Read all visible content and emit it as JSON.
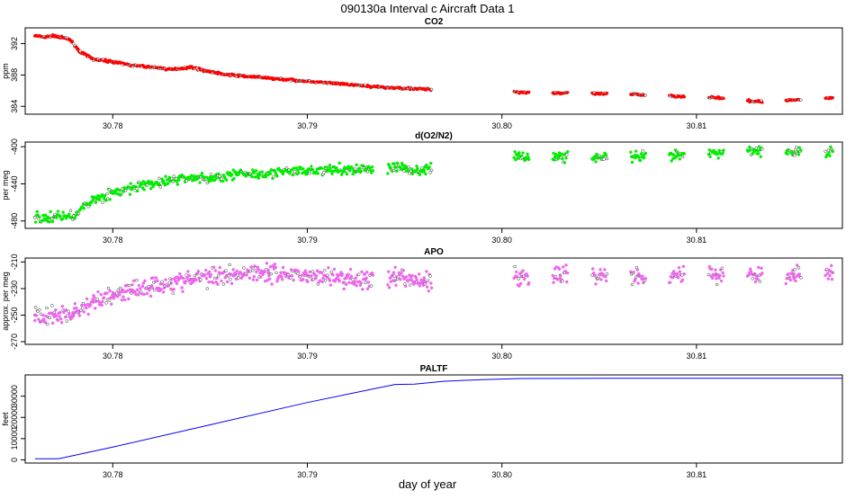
{
  "figure": {
    "title": "090130a   Interval c Aircraft Data 1",
    "xlabel": "day of year"
  },
  "chart_data": [
    {
      "type": "scatter",
      "title": "CO2",
      "ylabel": "ppm",
      "xlim": [
        30.7755,
        30.8175
      ],
      "ylim": [
        383.0,
        394.0
      ],
      "xticks": [
        30.78,
        30.79,
        30.8,
        30.81
      ],
      "xtick_labels": [
        "30.78",
        "30.79",
        "30.80",
        "30.81"
      ],
      "yticks": [
        384,
        388,
        392
      ],
      "ytick_labels": [
        "384",
        "388",
        "392"
      ],
      "color": "#ff0000",
      "series": [
        {
          "x": [
            30.776,
            30.7765,
            30.777,
            30.7775,
            30.7778,
            30.7783,
            30.779,
            30.78,
            30.781,
            30.782,
            30.783,
            30.784,
            30.785,
            30.786,
            30.787,
            30.788,
            30.789,
            30.79,
            30.791,
            30.792,
            30.793,
            30.794,
            30.795,
            30.796,
            30.801,
            30.803,
            30.805,
            30.807,
            30.809,
            30.811,
            30.813,
            30.815,
            30.817
          ],
          "y": [
            393.0,
            392.8,
            393.0,
            392.7,
            392.5,
            391.0,
            390.0,
            389.7,
            389.2,
            389.0,
            388.7,
            389.0,
            388.4,
            388.0,
            387.8,
            387.6,
            387.4,
            387.2,
            387.0,
            386.8,
            386.6,
            386.4,
            386.3,
            386.2,
            385.8,
            385.7,
            385.6,
            385.5,
            385.3,
            385.1,
            384.6,
            384.8,
            385.1
          ]
        }
      ]
    },
    {
      "type": "scatter",
      "title": "d(O2/N2)",
      "ylabel": "per meg",
      "xlim": [
        30.7755,
        30.8175
      ],
      "ylim": [
        -488,
        -395
      ],
      "xticks": [
        30.78,
        30.79,
        30.8,
        30.81
      ],
      "xtick_labels": [
        "30.78",
        "30.79",
        "30.80",
        "30.81"
      ],
      "yticks": [
        -480,
        -440,
        -400
      ],
      "ytick_labels": [
        "-480",
        "-440",
        "-400"
      ],
      "color": "#00ee00",
      "series": [
        {
          "x": [
            30.776,
            30.7765,
            30.777,
            30.7775,
            30.778,
            30.779,
            30.78,
            30.781,
            30.782,
            30.783,
            30.784,
            30.785,
            30.786,
            30.787,
            30.788,
            30.789,
            30.79,
            30.791,
            30.792,
            30.793,
            30.7945,
            30.795,
            30.7955,
            30.796,
            30.801,
            30.803,
            30.805,
            30.807,
            30.809,
            30.811,
            30.813,
            30.815,
            30.817
          ],
          "y": [
            -476,
            -478,
            -475,
            -475,
            -474,
            -457,
            -450,
            -445,
            -440,
            -436,
            -433,
            -435,
            -430,
            -429,
            -428,
            -427,
            -426,
            -425,
            -425,
            -424,
            -422,
            -423,
            -426,
            -425,
            -410,
            -411,
            -412,
            -411,
            -410,
            -407,
            -404,
            -406,
            -405
          ]
        }
      ]
    },
    {
      "type": "scatter",
      "title": "APO",
      "ylabel": "approx. per meg",
      "xlim": [
        30.7755,
        30.8175
      ],
      "ylim": [
        -272,
        -207
      ],
      "xticks": [
        30.78,
        30.79,
        30.8,
        30.81
      ],
      "xtick_labels": [
        "30.78",
        "30.79",
        "30.80",
        "30.81"
      ],
      "yticks": [
        -270,
        -250,
        -230,
        -210
      ],
      "ytick_labels": [
        "-270",
        "-250",
        "-230",
        "-210"
      ],
      "color": "#ee66ee",
      "series": [
        {
          "x": [
            30.776,
            30.777,
            30.778,
            30.779,
            30.78,
            30.781,
            30.782,
            30.783,
            30.784,
            30.785,
            30.786,
            30.787,
            30.788,
            30.789,
            30.79,
            30.791,
            30.792,
            30.793,
            30.7945,
            30.795,
            30.7955,
            30.796,
            30.801,
            30.803,
            30.805,
            30.807,
            30.809,
            30.811,
            30.813,
            30.815,
            30.817
          ],
          "y": [
            -250,
            -251,
            -249,
            -240,
            -235,
            -231,
            -228,
            -226,
            -223,
            -221,
            -219,
            -217,
            -218,
            -219,
            -220,
            -221,
            -222,
            -223,
            -224,
            -222,
            -225,
            -224,
            -221,
            -220,
            -220,
            -220,
            -219,
            -219,
            -219,
            -219,
            -218
          ]
        }
      ]
    },
    {
      "type": "line",
      "title": "PALTF",
      "ylabel": "feet",
      "xlim": [
        30.7755,
        30.8175
      ],
      "ylim": [
        -1500,
        40000
      ],
      "xticks": [
        30.78,
        30.79,
        30.8,
        30.81
      ],
      "xtick_labels": [
        "30.78",
        "30.79",
        "30.80",
        "30.81"
      ],
      "yticks": [
        0,
        10000,
        20000,
        30000
      ],
      "ytick_labels": [
        "0",
        "10000",
        "20000",
        "30000"
      ],
      "color": "#0000ff",
      "series": [
        {
          "x": [
            30.776,
            30.777,
            30.7772,
            30.78,
            30.785,
            30.79,
            30.7945,
            30.7955,
            30.797,
            30.799,
            30.801,
            30.805,
            30.81,
            30.8175
          ],
          "y": [
            500,
            500,
            500,
            6000,
            16500,
            27000,
            35500,
            35700,
            37000,
            37800,
            38300,
            38400,
            38400,
            38400
          ]
        }
      ]
    }
  ]
}
